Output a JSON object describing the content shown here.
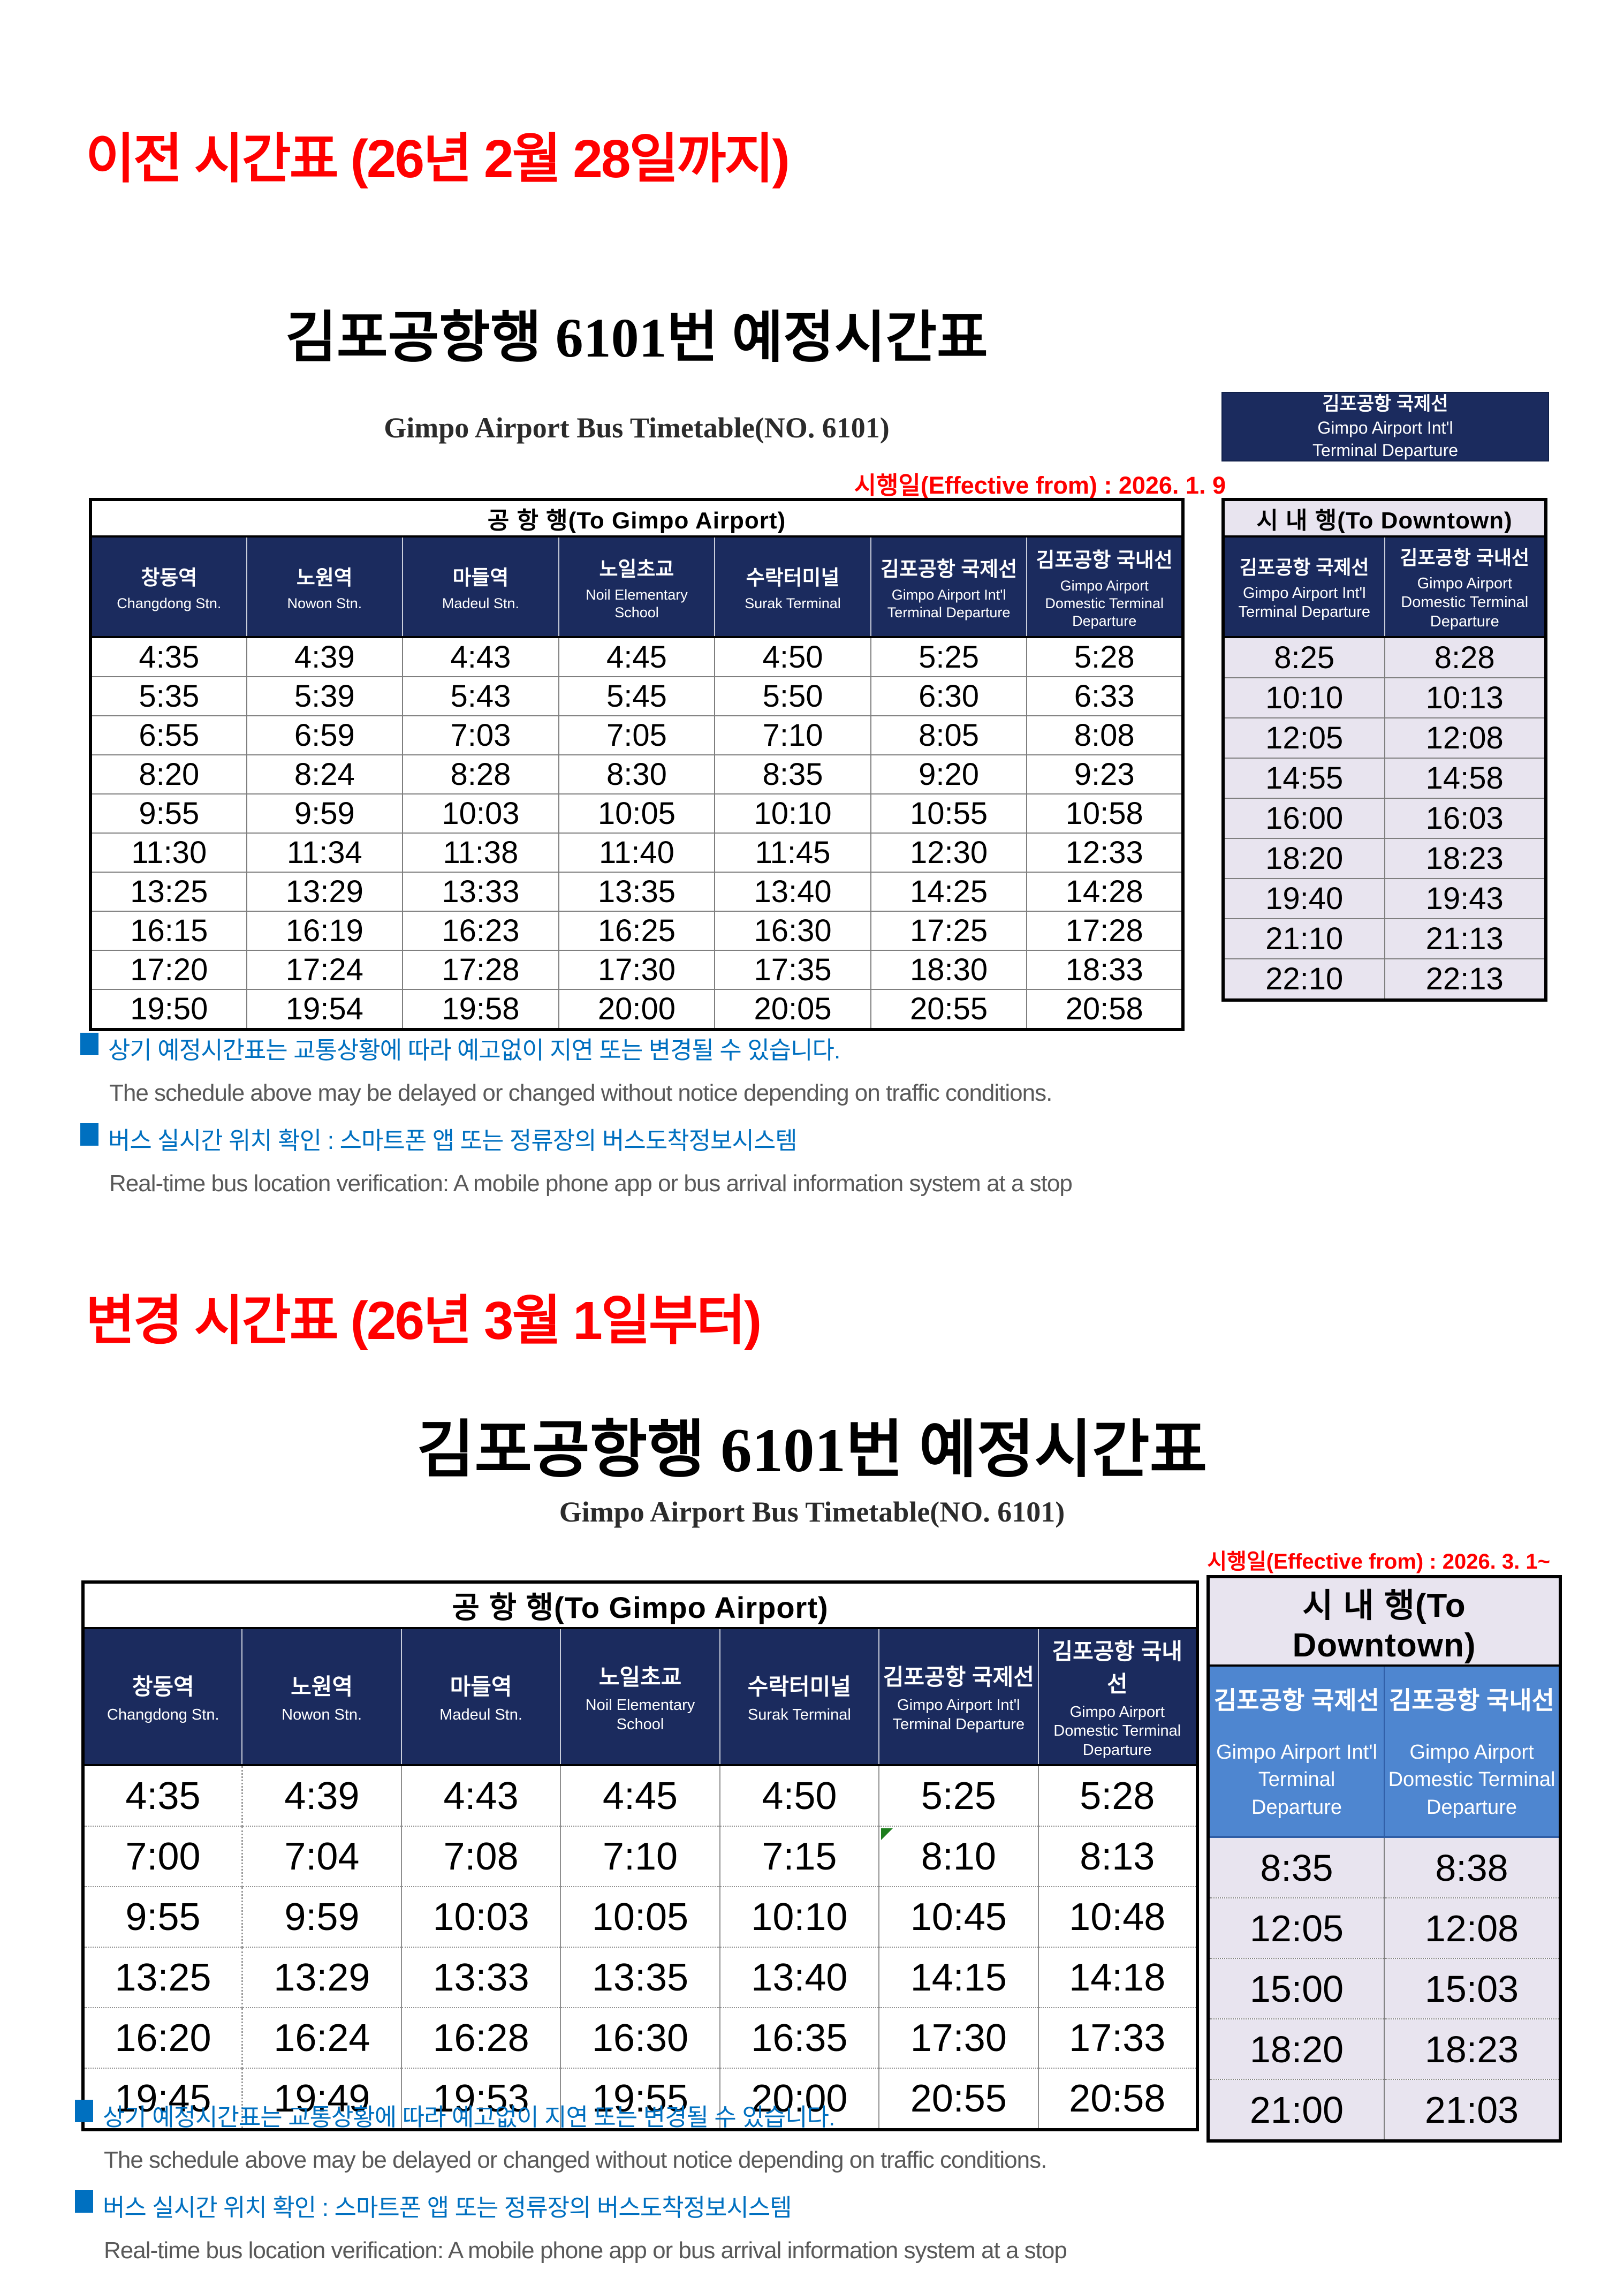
{
  "colors": {
    "navy": "#1b2b5e",
    "lavender": "#e8e4ef",
    "blue_header": "#4e86d0",
    "heading_red": "#ff0000",
    "note_blue": "#0070c0",
    "note_gray": "#595959"
  },
  "prev": {
    "section_heading": "이전 시간표 (26년 2월 28일까지)",
    "title": "김포공항행 6101번 예정시간표",
    "subtitle": "Gimpo Airport Bus Timetable(NO. 6101)",
    "effective_date": "시행일(Effective from) : 2026. 1. 9",
    "airport_badge": {
      "line1": "김포공항 국제선",
      "line2": "Gimpo Airport Int'l",
      "line3": "Terminal Departure"
    },
    "to_airport": {
      "header": "공 항 행(To Gimpo Airport)",
      "columns": [
        {
          "ko": "창동역",
          "en": "Changdong Stn."
        },
        {
          "ko": "노원역",
          "en": "Nowon Stn."
        },
        {
          "ko": "마들역",
          "en": "Madeul Stn."
        },
        {
          "ko": "노일초교",
          "en": "Noil Elementary School"
        },
        {
          "ko": "수락터미널",
          "en": "Surak Terminal"
        },
        {
          "ko": "김포공항 국제선",
          "en": "Gimpo Airport Int'l Terminal Departure"
        },
        {
          "ko": "김포공항 국내선",
          "en": "Gimpo Airport Domestic Terminal Departure"
        }
      ],
      "rows": [
        [
          "4:35",
          "4:39",
          "4:43",
          "4:45",
          "4:50",
          "5:25",
          "5:28"
        ],
        [
          "5:35",
          "5:39",
          "5:43",
          "5:45",
          "5:50",
          "6:30",
          "6:33"
        ],
        [
          "6:55",
          "6:59",
          "7:03",
          "7:05",
          "7:10",
          "8:05",
          "8:08"
        ],
        [
          "8:20",
          "8:24",
          "8:28",
          "8:30",
          "8:35",
          "9:20",
          "9:23"
        ],
        [
          "9:55",
          "9:59",
          "10:03",
          "10:05",
          "10:10",
          "10:55",
          "10:58"
        ],
        [
          "11:30",
          "11:34",
          "11:38",
          "11:40",
          "11:45",
          "12:30",
          "12:33"
        ],
        [
          "13:25",
          "13:29",
          "13:33",
          "13:35",
          "13:40",
          "14:25",
          "14:28"
        ],
        [
          "16:15",
          "16:19",
          "16:23",
          "16:25",
          "16:30",
          "17:25",
          "17:28"
        ],
        [
          "17:20",
          "17:24",
          "17:28",
          "17:30",
          "17:35",
          "18:30",
          "18:33"
        ],
        [
          "19:50",
          "19:54",
          "19:58",
          "20:00",
          "20:05",
          "20:55",
          "20:58"
        ]
      ]
    },
    "to_downtown": {
      "header": "시 내 행(To Downtown)",
      "columns": [
        {
          "ko": "김포공항 국제선",
          "en": "Gimpo Airport Int'l Terminal Departure"
        },
        {
          "ko": "김포공항 국내선",
          "en": "Gimpo Airport Domestic Terminal Departure"
        }
      ],
      "rows": [
        [
          "8:25",
          "8:28"
        ],
        [
          "10:10",
          "10:13"
        ],
        [
          "12:05",
          "12:08"
        ],
        [
          "14:55",
          "14:58"
        ],
        [
          "16:00",
          "16:03"
        ],
        [
          "18:20",
          "18:23"
        ],
        [
          "19:40",
          "19:43"
        ],
        [
          "21:10",
          "21:13"
        ],
        [
          "22:10",
          "22:13"
        ]
      ]
    },
    "notes": [
      {
        "lang": "ko",
        "text": "상기 예정시간표는 교통상황에 따라 예고없이 지연 또는 변경될 수 있습니다."
      },
      {
        "lang": "en",
        "text": "The schedule above may be delayed or changed without notice depending on traffic conditions."
      },
      {
        "lang": "ko",
        "text": "버스 실시간 위치 확인 : 스마트폰 앱 또는 정류장의 버스도착정보시스템"
      },
      {
        "lang": "en",
        "text": "Real-time bus location verification: A mobile phone app or bus arrival information system at a stop"
      }
    ]
  },
  "changed": {
    "section_heading": "변경 시간표 (26년 3월 1일부터)",
    "title": "김포공항행 6101번 예정시간표",
    "subtitle": "Gimpo Airport Bus Timetable(NO. 6101)",
    "effective_date": "시행일(Effective from) : 2026. 3. 1~",
    "to_airport": {
      "header": "공 항 행(To Gimpo Airport)",
      "comment_cell": "1,5",
      "columns": [
        {
          "ko": "창동역",
          "en": "Changdong Stn."
        },
        {
          "ko": "노원역",
          "en": "Nowon Stn."
        },
        {
          "ko": "마들역",
          "en": "Madeul Stn."
        },
        {
          "ko": "노일초교",
          "en": "Noil Elementary School"
        },
        {
          "ko": "수락터미널",
          "en": "Surak Terminal"
        },
        {
          "ko": "김포공항 국제선",
          "en": "Gimpo Airport Int'l Terminal Departure"
        },
        {
          "ko": "김포공항 국내선",
          "en": "Gimpo Airport Domestic Terminal Departure"
        }
      ],
      "rows": [
        [
          "4:35",
          "4:39",
          "4:43",
          "4:45",
          "4:50",
          "5:25",
          "5:28"
        ],
        [
          "7:00",
          "7:04",
          "7:08",
          "7:10",
          "7:15",
          "8:10",
          "8:13"
        ],
        [
          "9:55",
          "9:59",
          "10:03",
          "10:05",
          "10:10",
          "10:45",
          "10:48"
        ],
        [
          "13:25",
          "13:29",
          "13:33",
          "13:35",
          "13:40",
          "14:15",
          "14:18"
        ],
        [
          "16:20",
          "16:24",
          "16:28",
          "16:30",
          "16:35",
          "17:30",
          "17:33"
        ],
        [
          "19:45",
          "19:49",
          "19:53",
          "19:55",
          "20:00",
          "20:55",
          "20:58"
        ]
      ]
    },
    "to_downtown": {
      "header": "시 내 행(To Downtown)",
      "columns": [
        {
          "ko": "김포공항 국제선",
          "en": "Gimpo Airport Int'l Terminal Departure"
        },
        {
          "ko": "김포공항 국내선",
          "en": "Gimpo Airport Domestic Terminal Departure"
        }
      ],
      "rows": [
        [
          "8:35",
          "8:38"
        ],
        [
          "12:05",
          "12:08"
        ],
        [
          "15:00",
          "15:03"
        ],
        [
          "18:20",
          "18:23"
        ],
        [
          "21:00",
          "21:03"
        ]
      ]
    },
    "notes": [
      {
        "lang": "ko",
        "text": "상기 예정시간표는 교통상황에 따라 예고없이 지연 또는 변경될 수 있습니다."
      },
      {
        "lang": "en",
        "text": "The schedule above may be delayed or changed without notice depending on traffic conditions."
      },
      {
        "lang": "ko",
        "text": "버스 실시간 위치 확인 : 스마트폰 앱 또는 정류장의 버스도착정보시스템"
      },
      {
        "lang": "en",
        "text": "Real-time bus location verification: A mobile phone app or bus arrival information system at a stop"
      }
    ]
  }
}
